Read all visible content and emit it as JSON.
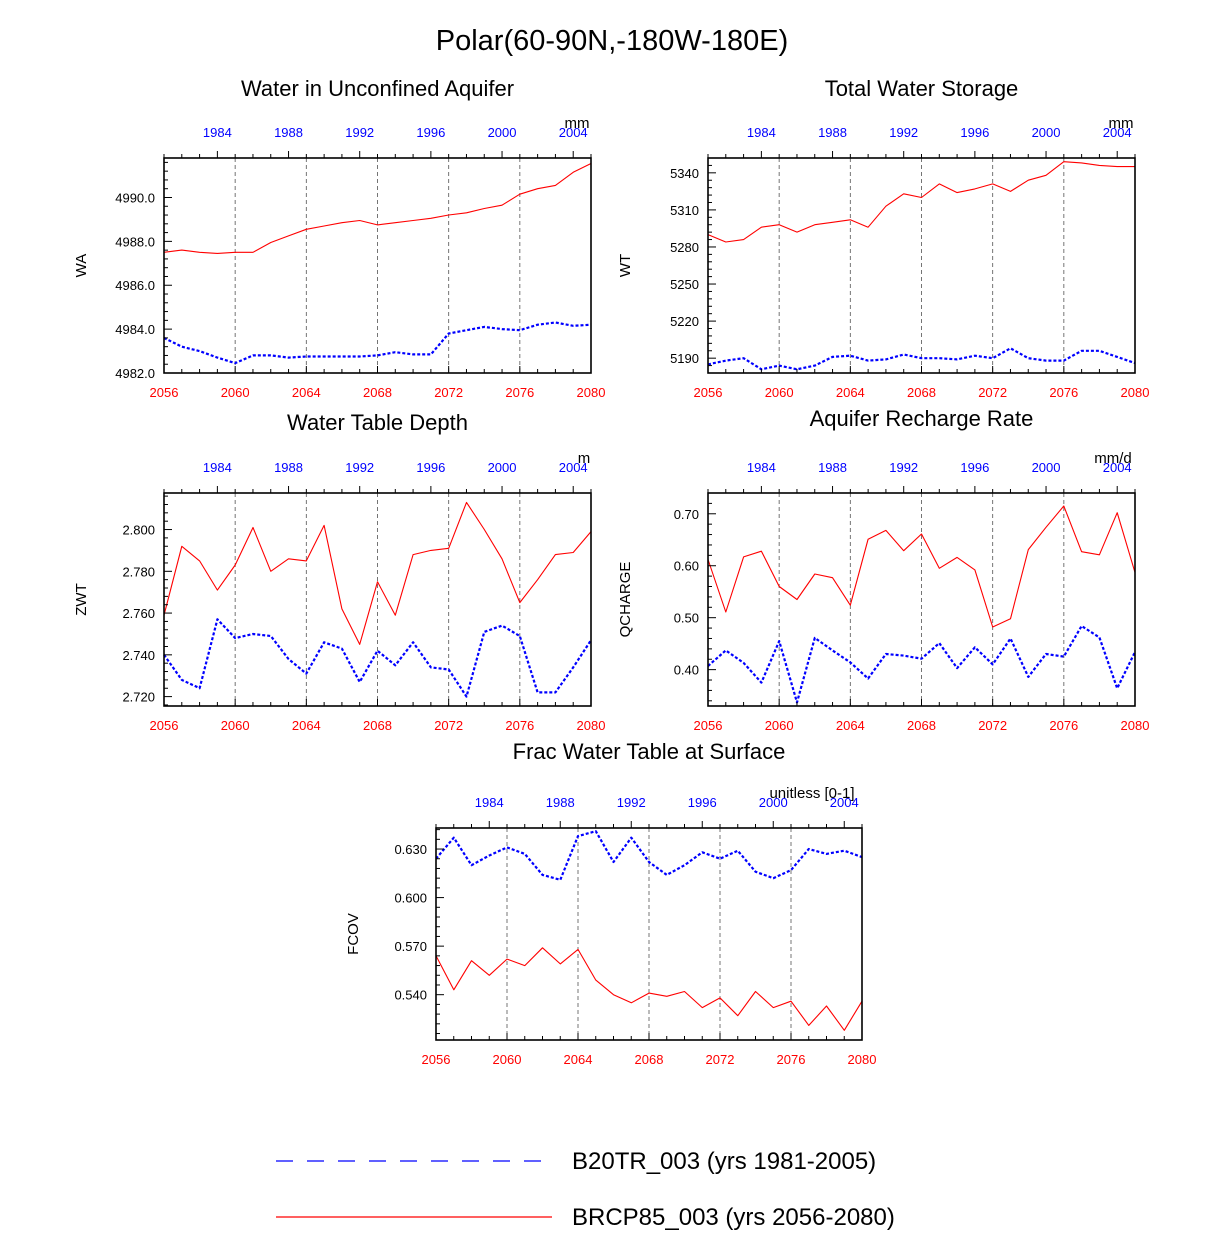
{
  "figure": {
    "title": "Polar(60-90N,-180W-180E)",
    "colors": {
      "rcp": "#ff0000",
      "tr": "#0000ff",
      "axis": "#000000",
      "grid": "#666666"
    }
  },
  "legend": {
    "items": [
      {
        "label": "B20TR_003 (yrs 1981-2005)",
        "series": "tr"
      },
      {
        "label": "BRCP85_003 (yrs 2056-2080)",
        "series": "rcp"
      }
    ]
  },
  "chart_data": [
    {
      "type": "line",
      "id": "wa",
      "title": "Water in Unconfined Aquifer",
      "ylabel": "WA",
      "units": "mm",
      "ylim": [
        4982.0,
        4991.8
      ],
      "yticks": [
        4982.0,
        4984.0,
        4986.0,
        4988.0,
        4990.0
      ],
      "ytick_labels": [
        "4982.0",
        "4984.0",
        "4986.0",
        "4988.0",
        "4990.0"
      ],
      "x_bottom": {
        "range": [
          2056,
          2080
        ],
        "ticks": [
          2056,
          2060,
          2064,
          2068,
          2072,
          2076,
          2080
        ],
        "labels": [
          "2056",
          "2060",
          "2064",
          "2068",
          "2072",
          "2076",
          "2080"
        ]
      },
      "x_top": {
        "range": [
          1981,
          2005
        ],
        "ticks": [
          1984,
          1988,
          1992,
          1996,
          2000,
          2004
        ],
        "labels": [
          "1984",
          "1988",
          "1992",
          "1996",
          "2000",
          "2004"
        ]
      },
      "series": [
        {
          "name": "BRCP85_003 (yrs 2056-2080)",
          "key": "rcp",
          "axis": "bottom",
          "x": [
            2056,
            2057,
            2058,
            2059,
            2060,
            2061,
            2062,
            2063,
            2064,
            2065,
            2066,
            2067,
            2068,
            2069,
            2070,
            2071,
            2072,
            2073,
            2074,
            2075,
            2076,
            2077,
            2078,
            2079,
            2080
          ],
          "values": [
            4987.5,
            4987.6,
            4987.5,
            4987.45,
            4987.5,
            4987.5,
            4987.95,
            4988.25,
            4988.55,
            4988.7,
            4988.85,
            4988.95,
            4988.75,
            4988.85,
            4988.95,
            4989.05,
            4989.2,
            4989.3,
            4989.5,
            4989.65,
            4990.15,
            4990.4,
            4990.55,
            4991.15,
            4991.55
          ]
        },
        {
          "name": "B20TR_003 (yrs 1981-2005)",
          "key": "tr",
          "axis": "top",
          "x": [
            1981,
            1982,
            1983,
            1984,
            1985,
            1986,
            1987,
            1988,
            1989,
            1990,
            1991,
            1992,
            1993,
            1994,
            1995,
            1996,
            1997,
            1998,
            1999,
            2000,
            2001,
            2002,
            2003,
            2004,
            2005
          ],
          "values": [
            4983.6,
            4983.2,
            4983.0,
            4982.7,
            4982.45,
            4982.8,
            4982.8,
            4982.7,
            4982.75,
            4982.75,
            4982.75,
            4982.75,
            4982.8,
            4982.95,
            4982.85,
            4982.85,
            4983.8,
            4983.95,
            4984.1,
            4984.0,
            4983.95,
            4984.2,
            4984.3,
            4984.15,
            4984.2
          ]
        }
      ]
    },
    {
      "type": "line",
      "id": "wt",
      "title": "Total Water Storage",
      "ylabel": "WT",
      "units": "mm",
      "ylim": [
        5178,
        5352
      ],
      "yticks": [
        5190,
        5220,
        5250,
        5280,
        5310,
        5340
      ],
      "ytick_labels": [
        "5190",
        "5220",
        "5250",
        "5280",
        "5310",
        "5340"
      ],
      "x_bottom": {
        "range": [
          2056,
          2080
        ],
        "ticks": [
          2056,
          2060,
          2064,
          2068,
          2072,
          2076,
          2080
        ],
        "labels": [
          "2056",
          "2060",
          "2064",
          "2068",
          "2072",
          "2076",
          "2080"
        ]
      },
      "x_top": {
        "range": [
          1981,
          2005
        ],
        "ticks": [
          1984,
          1988,
          1992,
          1996,
          2000,
          2004
        ],
        "labels": [
          "1984",
          "1988",
          "1992",
          "1996",
          "2000",
          "2004"
        ]
      },
      "series": [
        {
          "name": "BRCP85_003 (yrs 2056-2080)",
          "key": "rcp",
          "axis": "bottom",
          "x": [
            2056,
            2057,
            2058,
            2059,
            2060,
            2061,
            2062,
            2063,
            2064,
            2065,
            2066,
            2067,
            2068,
            2069,
            2070,
            2071,
            2072,
            2073,
            2074,
            2075,
            2076,
            2077,
            2078,
            2079,
            2080
          ],
          "values": [
            5290,
            5284,
            5286,
            5296,
            5298,
            5292,
            5298,
            5300,
            5302,
            5296,
            5313,
            5323,
            5320,
            5331,
            5324,
            5327,
            5331,
            5325,
            5334,
            5338,
            5349,
            5348,
            5346,
            5345,
            5345
          ]
        },
        {
          "name": "B20TR_003 (yrs 1981-2005)",
          "key": "tr",
          "axis": "top",
          "x": [
            1981,
            1982,
            1983,
            1984,
            1985,
            1986,
            1987,
            1988,
            1989,
            1990,
            1991,
            1992,
            1993,
            1994,
            1995,
            1996,
            1997,
            1998,
            1999,
            2000,
            2001,
            2002,
            2003,
            2004,
            2005
          ],
          "values": [
            5185,
            5188,
            5190,
            5181,
            5184,
            5181,
            5184,
            5191,
            5192,
            5188,
            5189,
            5193,
            5190,
            5190,
            5189,
            5192,
            5190,
            5198,
            5190,
            5188,
            5188,
            5196,
            5196,
            5191,
            5186
          ]
        }
      ]
    },
    {
      "type": "line",
      "id": "zwt",
      "title": "Water Table Depth",
      "ylabel": "ZWT",
      "units": "m",
      "ylim": [
        2.7155,
        2.8175
      ],
      "yticks": [
        2.72,
        2.74,
        2.76,
        2.78,
        2.8
      ],
      "ytick_labels": [
        "2.720",
        "2.740",
        "2.760",
        "2.780",
        "2.800"
      ],
      "x_bottom": {
        "range": [
          2056,
          2080
        ],
        "ticks": [
          2056,
          2060,
          2064,
          2068,
          2072,
          2076,
          2080
        ],
        "labels": [
          "2056",
          "2060",
          "2064",
          "2068",
          "2072",
          "2076",
          "2080"
        ]
      },
      "x_top": {
        "range": [
          1981,
          2005
        ],
        "ticks": [
          1984,
          1988,
          1992,
          1996,
          2000,
          2004
        ],
        "labels": [
          "1984",
          "1988",
          "1992",
          "1996",
          "2000",
          "2004"
        ]
      },
      "series": [
        {
          "name": "BRCP85_003 (yrs 2056-2080)",
          "key": "rcp",
          "axis": "bottom",
          "x": [
            2056,
            2057,
            2058,
            2059,
            2060,
            2061,
            2062,
            2063,
            2064,
            2065,
            2066,
            2067,
            2068,
            2069,
            2070,
            2071,
            2072,
            2073,
            2074,
            2075,
            2076,
            2077,
            2078,
            2079,
            2080
          ],
          "values": [
            2.759,
            2.792,
            2.785,
            2.771,
            2.783,
            2.801,
            2.78,
            2.786,
            2.785,
            2.802,
            2.762,
            2.745,
            2.775,
            2.759,
            2.788,
            2.79,
            2.791,
            2.813,
            2.8,
            2.786,
            2.765,
            2.776,
            2.788,
            2.789,
            2.799
          ]
        },
        {
          "name": "B20TR_003 (yrs 1981-2005)",
          "key": "tr",
          "axis": "top",
          "x": [
            1981,
            1982,
            1983,
            1984,
            1985,
            1986,
            1987,
            1988,
            1989,
            1990,
            1991,
            1992,
            1993,
            1994,
            1995,
            1996,
            1997,
            1998,
            1999,
            2000,
            2001,
            2002,
            2003,
            2004,
            2005
          ],
          "values": [
            2.74,
            2.728,
            2.724,
            2.757,
            2.748,
            2.75,
            2.749,
            2.738,
            2.731,
            2.746,
            2.743,
            2.727,
            2.742,
            2.735,
            2.746,
            2.734,
            2.733,
            2.72,
            2.751,
            2.754,
            2.749,
            2.722,
            2.722,
            2.734,
            2.747
          ]
        }
      ]
    },
    {
      "type": "line",
      "id": "qcharge",
      "title": "Aquifer Recharge Rate",
      "ylabel": "QCHARGE",
      "units": "mm/d",
      "ylim": [
        0.33,
        0.74
      ],
      "yticks": [
        0.4,
        0.5,
        0.6,
        0.7
      ],
      "ytick_labels": [
        "0.40",
        "0.50",
        "0.60",
        "0.70"
      ],
      "x_bottom": {
        "range": [
          2056,
          2080
        ],
        "ticks": [
          2056,
          2060,
          2064,
          2068,
          2072,
          2076,
          2080
        ],
        "labels": [
          "2056",
          "2060",
          "2064",
          "2068",
          "2072",
          "2076",
          "2080"
        ]
      },
      "x_top": {
        "range": [
          1981,
          2005
        ],
        "ticks": [
          1984,
          1988,
          1992,
          1996,
          2000,
          2004
        ],
        "labels": [
          "1984",
          "1988",
          "1992",
          "1996",
          "2000",
          "2004"
        ]
      },
      "series": [
        {
          "name": "BRCP85_003 (yrs 2056-2080)",
          "key": "rcp",
          "axis": "bottom",
          "x": [
            2056,
            2057,
            2058,
            2059,
            2060,
            2061,
            2062,
            2063,
            2064,
            2065,
            2066,
            2067,
            2068,
            2069,
            2070,
            2071,
            2072,
            2073,
            2074,
            2075,
            2076,
            2077,
            2078,
            2079,
            2080
          ],
          "values": [
            0.612,
            0.511,
            0.617,
            0.628,
            0.56,
            0.535,
            0.584,
            0.577,
            0.524,
            0.651,
            0.668,
            0.629,
            0.661,
            0.595,
            0.616,
            0.592,
            0.482,
            0.498,
            0.631,
            0.674,
            0.715,
            0.627,
            0.621,
            0.702,
            0.587
          ]
        },
        {
          "name": "B20TR_003 (yrs 1981-2005)",
          "key": "tr",
          "axis": "top",
          "x": [
            1981,
            1982,
            1983,
            1984,
            1985,
            1986,
            1987,
            1988,
            1989,
            1990,
            1991,
            1992,
            1993,
            1994,
            1995,
            1996,
            1997,
            1998,
            1999,
            2000,
            2001,
            2002,
            2003,
            2004,
            2005
          ],
          "values": [
            0.407,
            0.437,
            0.413,
            0.375,
            0.455,
            0.337,
            0.461,
            0.437,
            0.414,
            0.383,
            0.43,
            0.427,
            0.421,
            0.451,
            0.403,
            0.443,
            0.41,
            0.46,
            0.386,
            0.43,
            0.425,
            0.484,
            0.462,
            0.364,
            0.434
          ]
        }
      ]
    },
    {
      "type": "line",
      "id": "fcov",
      "title": "Frac Water Table at Surface",
      "ylabel": "FCOV",
      "units": "unitless [0-1]",
      "ylim": [
        0.512,
        0.643
      ],
      "yticks": [
        0.54,
        0.57,
        0.6,
        0.63
      ],
      "ytick_labels": [
        "0.540",
        "0.570",
        "0.600",
        "0.630"
      ],
      "x_bottom": {
        "range": [
          2056,
          2080
        ],
        "ticks": [
          2056,
          2060,
          2064,
          2068,
          2072,
          2076,
          2080
        ],
        "labels": [
          "2056",
          "2060",
          "2064",
          "2068",
          "2072",
          "2076",
          "2080"
        ]
      },
      "x_top": {
        "range": [
          1981,
          2005
        ],
        "ticks": [
          1984,
          1988,
          1992,
          1996,
          2000,
          2004
        ],
        "labels": [
          "1984",
          "1988",
          "1992",
          "1996",
          "2000",
          "2004"
        ]
      },
      "series": [
        {
          "name": "BRCP85_003 (yrs 2056-2080)",
          "key": "rcp",
          "axis": "bottom",
          "x": [
            2056,
            2057,
            2058,
            2059,
            2060,
            2061,
            2062,
            2063,
            2064,
            2065,
            2066,
            2067,
            2068,
            2069,
            2070,
            2071,
            2072,
            2073,
            2074,
            2075,
            2076,
            2077,
            2078,
            2079,
            2080
          ],
          "values": [
            0.564,
            0.543,
            0.561,
            0.552,
            0.562,
            0.558,
            0.569,
            0.559,
            0.568,
            0.549,
            0.54,
            0.535,
            0.541,
            0.539,
            0.542,
            0.532,
            0.538,
            0.527,
            0.542,
            0.532,
            0.536,
            0.521,
            0.533,
            0.518,
            0.536
          ]
        },
        {
          "name": "B20TR_003 (yrs 1981-2005)",
          "key": "tr",
          "axis": "top",
          "x": [
            1981,
            1982,
            1983,
            1984,
            1985,
            1986,
            1987,
            1988,
            1989,
            1990,
            1991,
            1992,
            1993,
            1994,
            1995,
            1996,
            1997,
            1998,
            1999,
            2000,
            2001,
            2002,
            2003,
            2004,
            2005
          ],
          "values": [
            0.624,
            0.637,
            0.62,
            0.626,
            0.631,
            0.627,
            0.614,
            0.611,
            0.638,
            0.641,
            0.622,
            0.637,
            0.622,
            0.614,
            0.62,
            0.628,
            0.624,
            0.629,
            0.616,
            0.612,
            0.617,
            0.63,
            0.627,
            0.629,
            0.625
          ]
        }
      ]
    }
  ]
}
